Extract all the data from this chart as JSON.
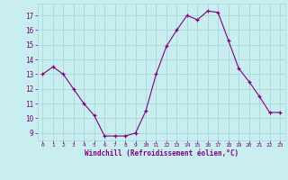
{
  "x": [
    0,
    1,
    2,
    3,
    4,
    5,
    6,
    7,
    8,
    9,
    10,
    11,
    12,
    13,
    14,
    15,
    16,
    17,
    18,
    19,
    20,
    21,
    22,
    23
  ],
  "y": [
    13.0,
    13.5,
    13.0,
    12.0,
    11.0,
    10.2,
    8.8,
    8.8,
    8.8,
    9.0,
    10.5,
    13.0,
    14.9,
    16.0,
    17.0,
    16.7,
    17.3,
    17.2,
    15.3,
    13.4,
    12.5,
    11.5,
    10.4,
    10.4
  ],
  "line_color": "#800080",
  "marker": "+",
  "marker_color": "#800080",
  "bg_color": "#c8eef0",
  "grid_color": "#a8d8da",
  "xlabel": "Windchill (Refroidissement éolien,°C)",
  "tick_color": "#800080",
  "ylim": [
    8.5,
    17.8
  ],
  "xlim": [
    -0.5,
    23.5
  ],
  "yticks": [
    9,
    10,
    11,
    12,
    13,
    14,
    15,
    16,
    17
  ],
  "xticks": [
    0,
    1,
    2,
    3,
    4,
    5,
    6,
    7,
    8,
    9,
    10,
    11,
    12,
    13,
    14,
    15,
    16,
    17,
    18,
    19,
    20,
    21,
    22,
    23
  ],
  "figsize": [
    3.2,
    2.0
  ],
  "dpi": 100
}
